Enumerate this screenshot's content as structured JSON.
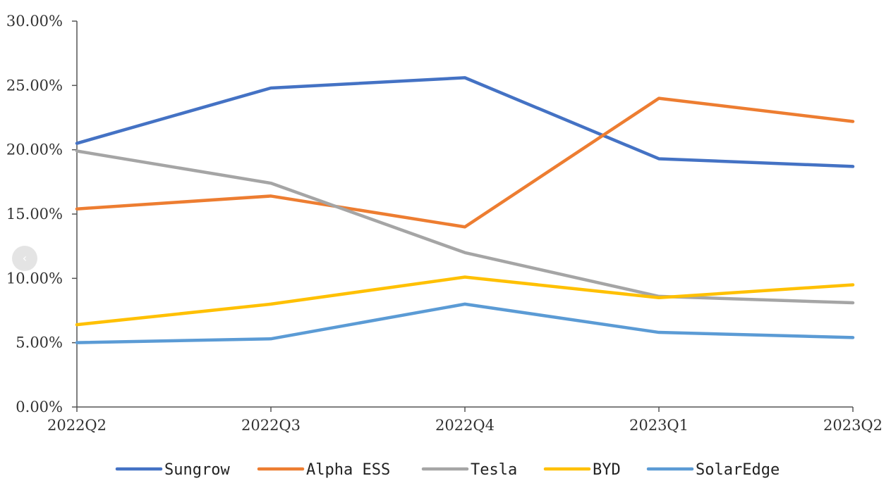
{
  "chart_data": {
    "type": "line",
    "title": "",
    "xlabel": "",
    "ylabel": "",
    "categories": [
      "2022Q2",
      "2022Q3",
      "2022Q4",
      "2023Q1",
      "2023Q2"
    ],
    "ylim": [
      0,
      30
    ],
    "y_ticks": [
      "0.00%",
      "5.00%",
      "10.00%",
      "15.00%",
      "20.00%",
      "25.00%",
      "30.00%"
    ],
    "grid": false,
    "legend_position": "bottom",
    "series": [
      {
        "name": "Sungrow",
        "color": "#4472C4",
        "values": [
          20.5,
          24.8,
          25.6,
          19.3,
          18.7
        ]
      },
      {
        "name": "Alpha ESS",
        "color": "#ED7D31",
        "values": [
          15.4,
          16.4,
          14.0,
          24.0,
          22.2
        ]
      },
      {
        "name": "Tesla",
        "color": "#A5A5A5",
        "values": [
          19.9,
          17.4,
          12.0,
          8.6,
          8.1
        ]
      },
      {
        "name": "BYD",
        "color": "#FFC000",
        "values": [
          6.4,
          8.0,
          10.1,
          8.5,
          9.5
        ]
      },
      {
        "name": "SolarEdge",
        "color": "#5B9BD5",
        "values": [
          5.0,
          5.3,
          8.0,
          5.8,
          5.4
        ]
      }
    ]
  },
  "nav": {
    "prev_icon": "‹"
  }
}
